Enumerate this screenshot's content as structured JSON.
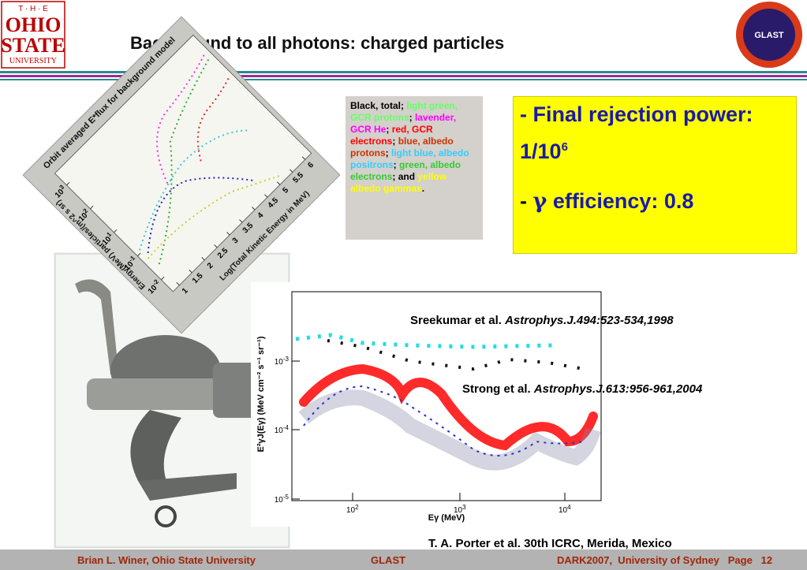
{
  "header": {
    "logo": {
      "line1": "T · H · E",
      "line2": "OHIO",
      "line3": "STATE",
      "line4": "UNIVERSITY"
    },
    "title": "Background to all photons: charged particles",
    "badge": "GLAST"
  },
  "legend_box": [
    {
      "text": "Black, total; ",
      "color": "#000000"
    },
    {
      "text": "light green, GCR protons",
      "color": "#66ff66"
    },
    {
      "text": "; ",
      "color": "#000000"
    },
    {
      "text": "lavender, GCR He",
      "color": "#ff00ff"
    },
    {
      "text": "; ",
      "color": "#000000"
    },
    {
      "text": "red, GCR electrons",
      "color": "#ff0000"
    },
    {
      "text": "; ",
      "color": "#000000"
    },
    {
      "text": "blue, albedo protons",
      "color": "#cc3300"
    },
    {
      "text": "; ",
      "color": "#000000"
    },
    {
      "text": "light blue, albedo positrons",
      "color": "#33ccff"
    },
    {
      "text": "; ",
      "color": "#000000"
    },
    {
      "text": "green, albedo electrons",
      "color": "#33cc33"
    },
    {
      "text": "; and ",
      "color": "#000000"
    },
    {
      "text": "yellow albedo gammas",
      "color": "#ffff00"
    },
    {
      "text": ".",
      "color": "#000000"
    }
  ],
  "callout": {
    "line1": "- Final rejection power:",
    "ratio_base": "1/10",
    "ratio_exp": "6",
    "eff_prefix": "- ",
    "eff_symbol": "γ",
    "eff_text": " efficiency: 0.8"
  },
  "refs": [
    {
      "authors": "Sreekumar et al. ",
      "journal": "Astrophys.J.494:523-534,1998"
    },
    {
      "authors": "Strong et al. ",
      "journal": "Astrophys.J.613:956-961,2004"
    },
    {
      "authors": "T. A. Porter et al. 30th ICRC, Merida, Mexico",
      "journal": ""
    }
  ],
  "rotated_plot": {
    "title": "Orbit averaged E*flux for background model",
    "y_label": "Energy(MeV) particles/(m^2 s sr)",
    "x_label": "Log(Total Kinetic Energy in MeV)",
    "x_ticks": [
      "1",
      "1.5",
      "2",
      "2.5",
      "3",
      "3.5",
      "4",
      "4.5",
      "5",
      "5.5",
      "6"
    ],
    "y_base": "10",
    "y_exps": [
      "-2",
      "-1",
      "1",
      "2",
      "3"
    ]
  },
  "spectrum_plot": {
    "y_label": "E²γJ(Eγ) (MeV cm⁻² s⁻¹ sr⁻¹)",
    "x_label": "Eγ (MeV)",
    "base": "10",
    "x_exps": [
      "2",
      "3",
      "4"
    ],
    "y_exps": [
      "-3",
      "-4",
      "-5"
    ]
  },
  "footer": {
    "left": "Brian L. Winer, Ohio State University",
    "center": "GLAST",
    "right": "DARK2007,  University of Sydney   Page   12"
  }
}
